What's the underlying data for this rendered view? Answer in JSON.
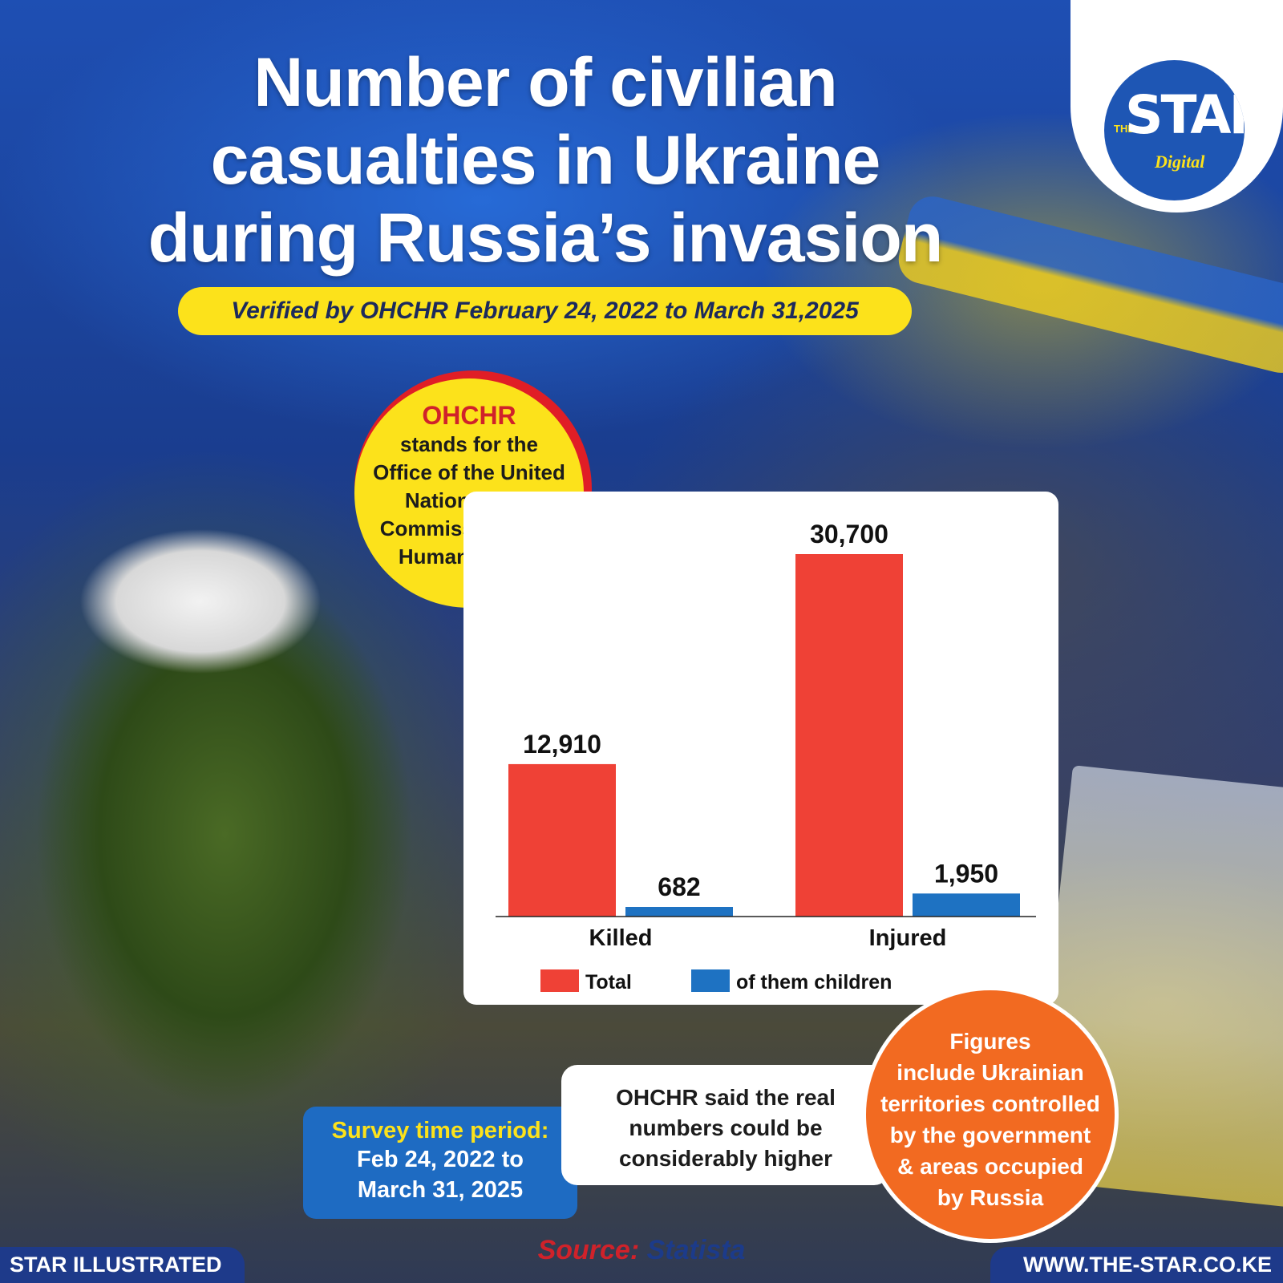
{
  "header": {
    "title_lines": [
      "Number of civilian",
      "casualties in Ukraine",
      "during Russia’s invasion"
    ],
    "subtitle": "Verified by OHCHR February 24, 2022 to March 31,2025"
  },
  "logo": {
    "the": "THE",
    "star": "STAR",
    "digital": "Digital"
  },
  "ohchr_note": {
    "abbr": "OHCHR",
    "lines": [
      "stands for the",
      "Office of the United",
      "Nations High",
      "Commissioner for",
      "Human Rights"
    ]
  },
  "chart_data": {
    "type": "bar",
    "categories": [
      "Killed",
      "Injured"
    ],
    "series": [
      {
        "name": "Total",
        "values": [
          12910,
          30700
        ],
        "labels": [
          "12,910",
          "30,700"
        ],
        "color": "#ef4136"
      },
      {
        "name": "of them children",
        "values": [
          682,
          1950
        ],
        "labels": [
          "682",
          "1,950"
        ],
        "color": "#1e72c2"
      }
    ],
    "ylim": [
      0,
      30700
    ],
    "grid": false,
    "legend_position": "bottom"
  },
  "survey": {
    "label": "Survey time period:",
    "dates": [
      "Feb 24, 2022 to",
      "March 31, 2025"
    ]
  },
  "note": {
    "lines": [
      "OHCHR said the real",
      "numbers could be",
      "considerably higher"
    ]
  },
  "figures_note": {
    "lines": [
      "Figures",
      "include Ukrainian",
      "territories controlled",
      "by the government",
      "& areas occupied",
      "by Russia"
    ]
  },
  "source": {
    "label": "Source:",
    "name": "Statista"
  },
  "footer": {
    "left": "STAR ILLUSTRATED",
    "right": "WWW.THE-STAR.CO.KE"
  },
  "colors": {
    "accent_yellow": "#fce21b",
    "accent_red": "#e01e26",
    "brand_blue": "#1e3a8a",
    "orange": "#f26a21"
  }
}
